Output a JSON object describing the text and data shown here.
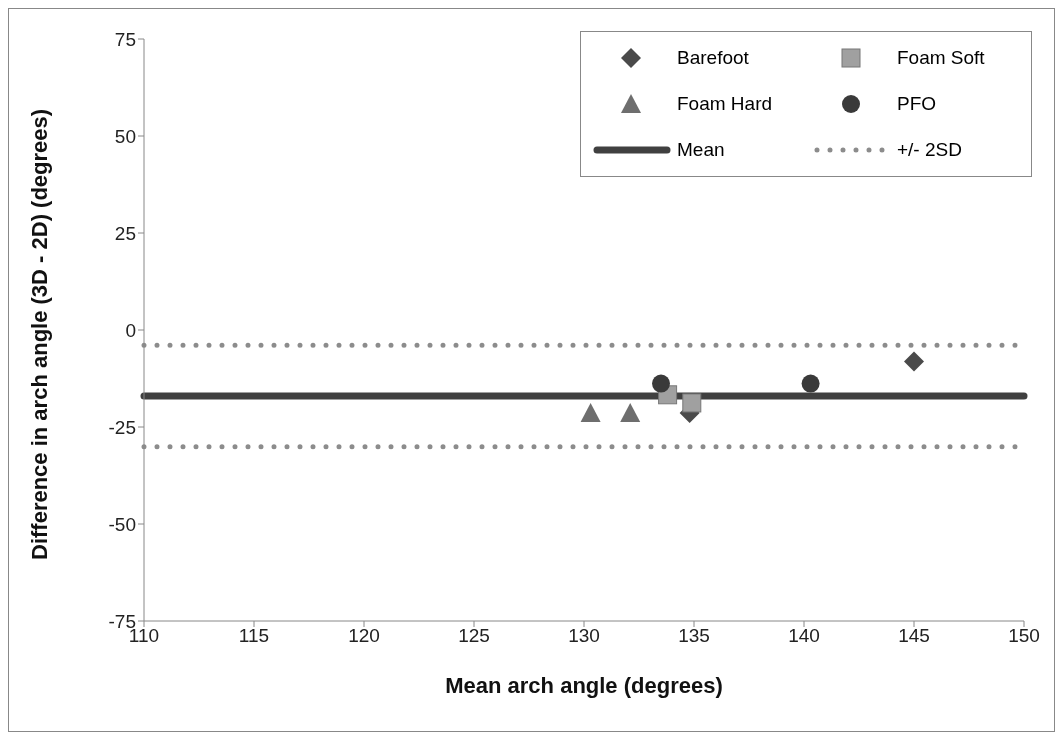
{
  "chart_data": {
    "type": "scatter",
    "xlabel": "Mean arch angle (degrees)",
    "ylabel": "Difference in arch angle (3D - 2D) (degrees)",
    "xlim": [
      110,
      150
    ],
    "xticks": [
      110,
      115,
      120,
      125,
      130,
      135,
      140,
      145,
      150
    ],
    "ylim": [
      -75,
      75
    ],
    "yticks": [
      -75,
      -50,
      -25,
      0,
      25,
      50,
      75
    ],
    "grid": false,
    "legend": "top right",
    "series": [
      {
        "name": "Barefoot",
        "color": "#4a4a4a",
        "marker": "diamond",
        "x": [
          145,
          134.8
        ],
        "values": [
          -8.1,
          -21.4
        ]
      },
      {
        "name": "Foam Soft",
        "color": "#a0a0a0",
        "marker": "square",
        "x": [
          133.8,
          134.9
        ],
        "values": [
          -16.7,
          -18.8
        ]
      },
      {
        "name": "Foam Hard",
        "color": "#6e6e6e",
        "marker": "triangle",
        "x": [
          130.3,
          132.1
        ],
        "values": [
          -21.4,
          -21.4
        ]
      },
      {
        "name": "PFO",
        "color": "#3a3a3a",
        "marker": "circle",
        "x": [
          133.5,
          140.3
        ],
        "values": [
          -13.8,
          -13.8
        ]
      }
    ],
    "ref_lines": [
      {
        "axis": "y",
        "value": -17,
        "label": "Mean",
        "color": "#404040",
        "line_style": "solid"
      },
      {
        "axis": "y",
        "value": -3.9,
        "label": "+/- 2SD",
        "color": "#8c8c8c",
        "line_style": "dotted"
      },
      {
        "axis": "y",
        "value": -30.1,
        "label": null,
        "color": "#8c8c8c",
        "line_style": "dotted"
      }
    ]
  }
}
